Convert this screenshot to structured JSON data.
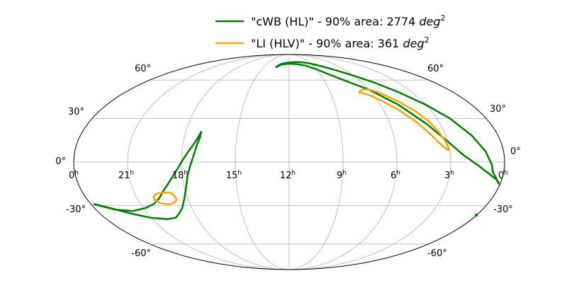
{
  "chart_data": {
    "type": "line",
    "projection": "mollweide",
    "title": "",
    "xlabel": "",
    "ylabel": "",
    "grid": true,
    "legend_placement": "top-center",
    "x_ticks": [
      {
        "ra_h": 24,
        "label": "0",
        "sup": "h"
      },
      {
        "ra_h": 21,
        "label": "21",
        "sup": "h"
      },
      {
        "ra_h": 18,
        "label": "18",
        "sup": "h"
      },
      {
        "ra_h": 15,
        "label": "15",
        "sup": "h"
      },
      {
        "ra_h": 12,
        "label": "12",
        "sup": "h"
      },
      {
        "ra_h": 9,
        "label": "9",
        "sup": "h"
      },
      {
        "ra_h": 6,
        "label": "6",
        "sup": "h"
      },
      {
        "ra_h": 3,
        "label": "3",
        "sup": "h"
      },
      {
        "ra_h": 0,
        "label": "0",
        "sup": "h"
      }
    ],
    "y_ticks": [
      {
        "dec": 60,
        "label": "60°"
      },
      {
        "dec": 30,
        "label": "30°"
      },
      {
        "dec": 0,
        "label": "0°"
      },
      {
        "dec": -30,
        "label": "-30°"
      },
      {
        "dec": -60,
        "label": "-60°"
      }
    ],
    "series": [
      {
        "name": "\"cWB (HL)\" - 90% area: 2774",
        "unit": "deg",
        "unit_exp": "2",
        "color": "#008000",
        "points": [
          [
            17.1,
            21
          ],
          [
            17.2,
            17
          ],
          [
            17.4,
            12
          ],
          [
            17.6,
            8
          ],
          [
            17.8,
            4
          ],
          [
            18.0,
            0
          ],
          [
            18.2,
            -4
          ],
          [
            18.5,
            -9
          ],
          [
            18.9,
            -15
          ],
          [
            19.3,
            -20
          ],
          [
            19.7,
            -25
          ],
          [
            20.2,
            -29
          ],
          [
            20.9,
            -32
          ],
          [
            21.8,
            -34
          ],
          [
            22.8,
            -33
          ],
          [
            23.6,
            -30
          ],
          [
            23.8,
            -29
          ],
          [
            23.0,
            -32
          ],
          [
            22.0,
            -36
          ],
          [
            21.0,
            -39
          ],
          [
            20.0,
            -40
          ],
          [
            19.4,
            -39
          ],
          [
            19.0,
            -36
          ],
          [
            18.6,
            -32
          ],
          [
            18.2,
            -25
          ],
          [
            17.9,
            -17
          ],
          [
            17.7,
            -9
          ],
          [
            17.5,
            -2
          ],
          [
            17.3,
            6
          ],
          [
            17.2,
            12
          ],
          [
            17.1,
            17
          ],
          [
            17.1,
            21
          ]
        ],
        "points_north": [
          [
            13.6,
            72
          ],
          [
            13.4,
            74
          ],
          [
            13.0,
            76
          ],
          [
            12.4,
            77
          ],
          [
            11.8,
            77.5
          ],
          [
            11.0,
            78
          ],
          [
            10.0,
            77.5
          ],
          [
            9.0,
            76
          ],
          [
            8.0,
            73
          ],
          [
            7.0,
            69
          ],
          [
            6.0,
            64
          ],
          [
            5.0,
            58
          ],
          [
            4.0,
            50
          ],
          [
            3.0,
            40
          ],
          [
            2.2,
            30
          ],
          [
            1.5,
            18
          ],
          [
            1.0,
            7
          ],
          [
            0.7,
            -2
          ],
          [
            0.6,
            -7
          ],
          [
            0.4,
            -10
          ],
          [
            0.2,
            -13
          ],
          [
            0.05,
            -15
          ],
          [
            0.3,
            -12
          ],
          [
            0.8,
            -8
          ],
          [
            1.5,
            -2
          ],
          [
            2.3,
            5
          ],
          [
            3.0,
            14
          ],
          [
            3.8,
            26
          ],
          [
            4.8,
            40
          ],
          [
            6.0,
            52
          ],
          [
            7.0,
            58
          ],
          [
            8.0,
            64
          ],
          [
            9.0,
            70
          ],
          [
            10.0,
            74
          ],
          [
            11.0,
            75.5
          ],
          [
            12.0,
            76
          ],
          [
            13.0,
            75
          ],
          [
            13.6,
            72
          ]
        ]
      },
      {
        "name": "\"LI (HLV)\" - 90% area: 361",
        "unit": "deg",
        "unit_exp": "2",
        "color": "#ffa500",
        "points": [
          [
            6.9,
            50
          ],
          [
            6.5,
            52
          ],
          [
            6.0,
            52
          ],
          [
            5.5,
            50
          ],
          [
            5.0,
            46
          ],
          [
            4.5,
            41
          ],
          [
            4.0,
            35
          ],
          [
            3.6,
            28
          ],
          [
            3.3,
            20
          ],
          [
            3.1,
            13
          ],
          [
            3.05,
            8
          ],
          [
            3.2,
            9
          ],
          [
            3.5,
            13
          ],
          [
            3.9,
            20
          ],
          [
            4.4,
            28
          ],
          [
            5.0,
            36
          ],
          [
            5.6,
            42
          ],
          [
            6.2,
            47
          ],
          [
            6.9,
            50
          ]
        ],
        "points_south": [
          [
            18.9,
            -21
          ],
          [
            18.8,
            -22
          ],
          [
            18.7,
            -24
          ],
          [
            18.7,
            -26
          ],
          [
            18.9,
            -28
          ],
          [
            19.2,
            -29
          ],
          [
            19.5,
            -29
          ],
          [
            19.8,
            -28
          ],
          [
            20.0,
            -26
          ],
          [
            20.0,
            -24
          ],
          [
            19.8,
            -22
          ],
          [
            19.5,
            -21
          ],
          [
            19.2,
            -21
          ],
          [
            18.9,
            -21
          ]
        ]
      }
    ]
  }
}
